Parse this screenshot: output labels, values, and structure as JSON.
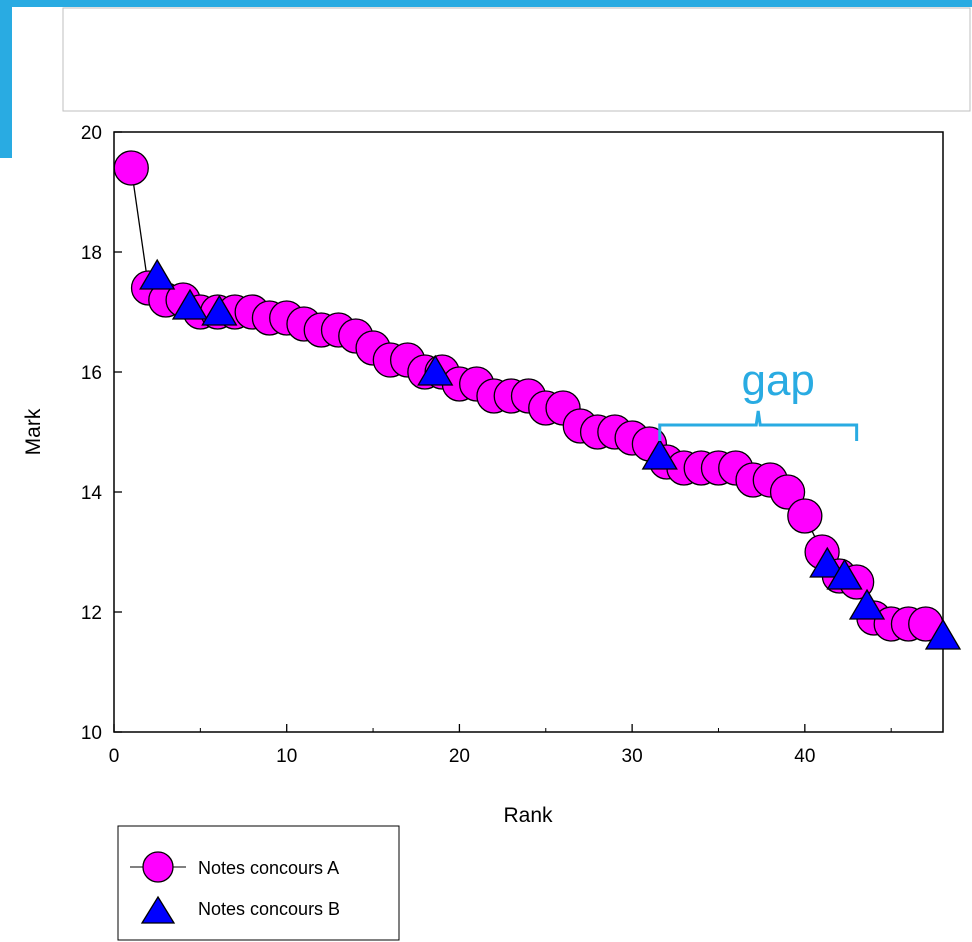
{
  "colors": {
    "slide_accent": "#29ABE2",
    "series_a_fill": "#FF00FF",
    "series_b_fill": "#0000FF",
    "annotation": "#29ABE2",
    "axis": "#000000"
  },
  "chart_data": {
    "type": "scatter",
    "title": "",
    "xlabel": "Rank",
    "ylabel": "Mark",
    "xlim": [
      0,
      48
    ],
    "ylim": [
      10,
      20
    ],
    "xticks": [
      0,
      10,
      20,
      30,
      40
    ],
    "yticks": [
      10,
      12,
      14,
      16,
      18,
      20
    ],
    "grid": false,
    "legend": {
      "position": "bottom-left"
    },
    "series": [
      {
        "name": "Notes concours A",
        "marker": "circle",
        "line": true,
        "x": [
          1,
          2,
          3,
          4,
          5,
          6,
          7,
          8,
          9,
          10,
          11,
          12,
          13,
          14,
          15,
          16,
          17,
          18,
          19,
          20,
          21,
          22,
          23,
          24,
          25,
          26,
          27,
          28,
          29,
          30,
          31,
          32,
          33,
          34,
          35,
          36,
          37,
          38,
          39,
          40,
          41,
          42,
          43,
          44,
          45,
          46,
          47
        ],
        "y": [
          19.4,
          17.4,
          17.2,
          17.2,
          17.0,
          17.0,
          17.0,
          17.0,
          16.9,
          16.9,
          16.8,
          16.7,
          16.7,
          16.6,
          16.4,
          16.2,
          16.2,
          16.0,
          16.0,
          15.8,
          15.8,
          15.6,
          15.6,
          15.6,
          15.4,
          15.4,
          15.1,
          15.0,
          15.0,
          14.9,
          14.8,
          14.5,
          14.4,
          14.4,
          14.4,
          14.4,
          14.2,
          14.2,
          14.0,
          13.6,
          13.0,
          12.6,
          12.5,
          11.9,
          11.8,
          11.8,
          11.8
        ]
      },
      {
        "name": "Notes concours B",
        "marker": "triangle",
        "line": false,
        "x": [
          2.5,
          4.4,
          6.1,
          18.6,
          31.6,
          41.3,
          42.3,
          43.6,
          48.0
        ],
        "y": [
          17.6,
          17.1,
          17.0,
          16.0,
          14.6,
          12.8,
          12.6,
          12.1,
          11.6
        ]
      }
    ],
    "annotations": [
      {
        "text": "gap",
        "type": "brace",
        "x_start": 31.6,
        "x_end": 43.0,
        "y": 15.1
      }
    ]
  }
}
